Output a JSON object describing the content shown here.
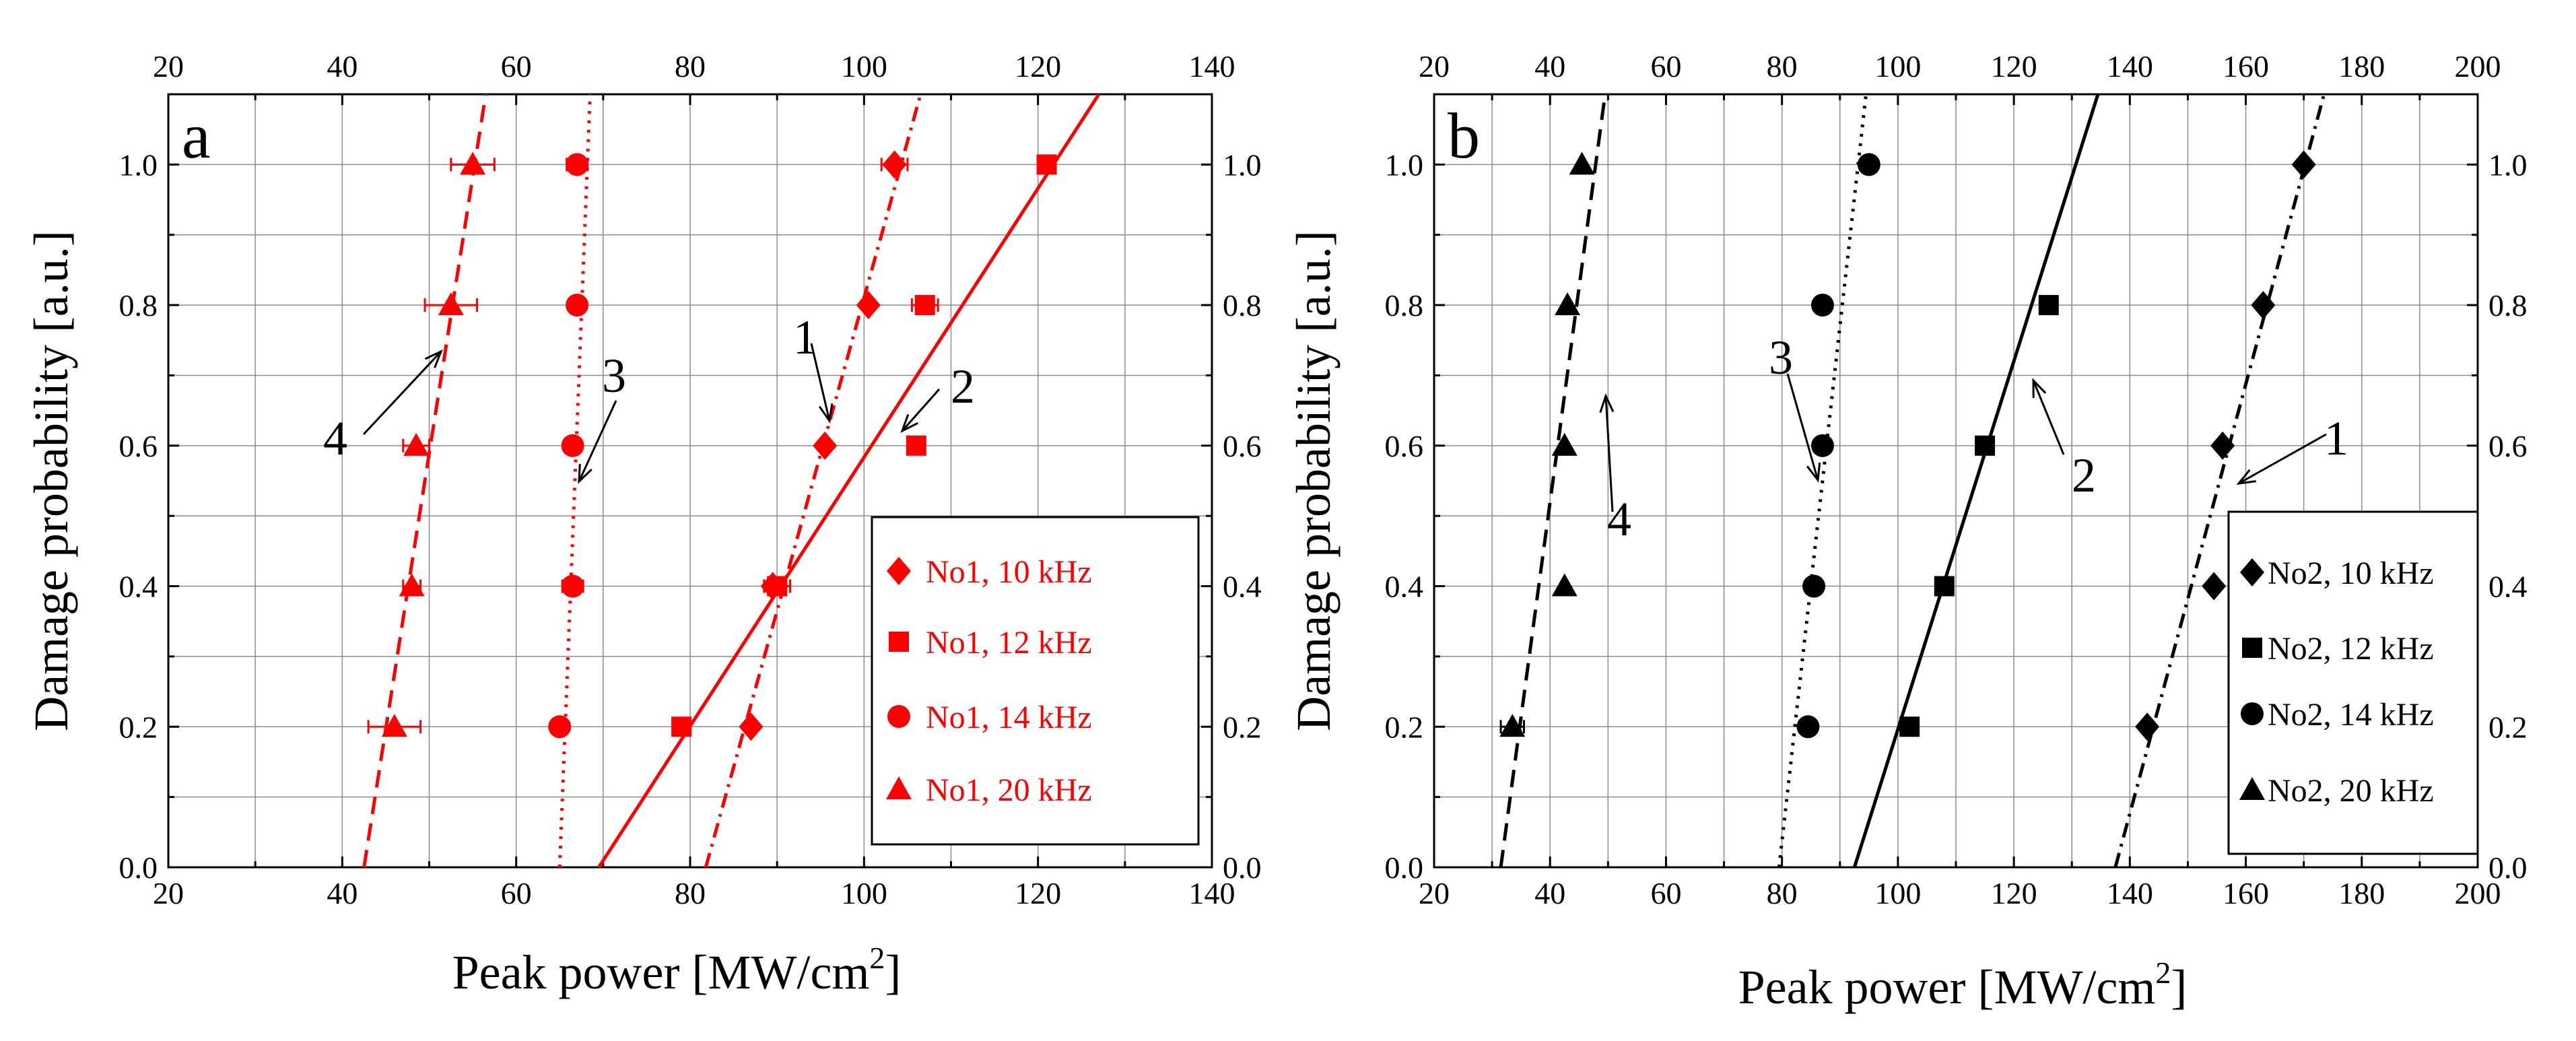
{
  "chart_data": [
    {
      "type": "scatter",
      "panel_label": "a",
      "color": "#ff0000",
      "xlabel": "Peak power [MW/cm",
      "xlabel_sup": "2",
      "xlabel_end": "]",
      "ylabel": "Damage probability [a.u.]",
      "xlim": [
        20,
        140
      ],
      "ylim": [
        0,
        1.1
      ],
      "xticks": [
        20,
        40,
        60,
        80,
        100,
        120,
        140
      ],
      "yticks": [
        0.0,
        0.2,
        0.4,
        0.6,
        0.8,
        1.0
      ],
      "ytick_labels": [
        "0.0",
        "0.2",
        "0.4",
        "0.6",
        "0.8",
        "1.0"
      ],
      "grid": true,
      "legend_position": "bottom-right",
      "series": [
        {
          "name": "No1, 10 kHz",
          "marker": "diamond",
          "line": "dashdot",
          "callout": "1",
          "points": [
            [
              87,
              0.2
            ],
            [
              89.5,
              0.4
            ],
            [
              95.5,
              0.6
            ],
            [
              100.5,
              0.8
            ],
            [
              103.5,
              1.0
            ]
          ],
          "xerr": [
            0,
            0,
            0,
            0,
            1.5
          ],
          "fit": [
            [
              81.8,
              0.0
            ],
            [
              106.5,
              1.1
            ]
          ]
        },
        {
          "name": "No1, 12 kHz",
          "marker": "square",
          "line": "solid",
          "callout": "2",
          "points": [
            [
              79,
              0.2
            ],
            [
              90,
              0.4
            ],
            [
              106,
              0.6
            ],
            [
              107,
              0.8
            ],
            [
              121,
              1.0
            ]
          ],
          "xerr": [
            0,
            1.5,
            0,
            1.5,
            0.8
          ],
          "fit": [
            [
              69.5,
              0.0
            ],
            [
              127,
              1.1
            ]
          ]
        },
        {
          "name": "No1, 14 kHz",
          "marker": "circle",
          "line": "dotted",
          "callout": "3",
          "points": [
            [
              65,
              0.2
            ],
            [
              66.5,
              0.4
            ],
            [
              66.5,
              0.6
            ],
            [
              67,
              0.8
            ],
            [
              67,
              1.0
            ]
          ],
          "xerr": [
            0,
            1.2,
            0,
            0,
            1.2
          ],
          "fit": [
            [
              65,
              0.0
            ],
            [
              68.5,
              1.1
            ]
          ]
        },
        {
          "name": "No1, 20 kHz",
          "marker": "triangle",
          "line": "dashed",
          "callout": "4",
          "points": [
            [
              46,
              0.2
            ],
            [
              48,
              0.4
            ],
            [
              48.5,
              0.6
            ],
            [
              52.5,
              0.8
            ],
            [
              55,
              1.0
            ]
          ],
          "xerr": [
            3,
            1,
            1.5,
            3,
            2.5
          ],
          "fit": [
            [
              42.5,
              0.0
            ],
            [
              56.5,
              1.1
            ]
          ]
        }
      ]
    },
    {
      "type": "scatter",
      "panel_label": "b",
      "color": "#000000",
      "xlabel": "Peak power [MW/cm",
      "xlabel_sup": "2",
      "xlabel_end": "]",
      "ylabel": "Damage probability [a.u.]",
      "xlim": [
        20,
        200
      ],
      "ylim": [
        0,
        1.1
      ],
      "xticks": [
        20,
        40,
        60,
        80,
        100,
        120,
        140,
        160,
        180,
        200
      ],
      "yticks": [
        0.0,
        0.2,
        0.4,
        0.6,
        0.8,
        1.0
      ],
      "ytick_labels": [
        "0.0",
        "0.2",
        "0.4",
        "0.6",
        "0.8",
        "1.0"
      ],
      "grid": true,
      "legend_position": "bottom-right",
      "series": [
        {
          "name": "No2, 10 kHz",
          "marker": "diamond",
          "line": "dashdot",
          "callout": "1",
          "points": [
            [
              143,
              0.2
            ],
            [
              154.5,
              0.4
            ],
            [
              156,
              0.6
            ],
            [
              163,
              0.8
            ],
            [
              170,
              1.0
            ]
          ],
          "xerr": [
            0,
            0,
            0,
            0,
            0
          ],
          "fit": [
            [
              137.5,
              0.0
            ],
            [
              173.5,
              1.1
            ]
          ]
        },
        {
          "name": "No2, 12 kHz",
          "marker": "square",
          "line": "solid",
          "callout": "2",
          "points": [
            [
              102,
              0.2
            ],
            [
              108,
              0.4
            ],
            [
              115,
              0.6
            ],
            [
              126,
              0.8
            ]
          ],
          "xerr": [
            0,
            1.5,
            0,
            0
          ],
          "fit": [
            [
              92.5,
              0.0
            ],
            [
              134.5,
              1.1
            ]
          ]
        },
        {
          "name": "No2, 14 kHz",
          "marker": "circle",
          "line": "dotted",
          "callout": "3",
          "points": [
            [
              84.5,
              0.2
            ],
            [
              85.5,
              0.4
            ],
            [
              87,
              0.6
            ],
            [
              87,
              0.8
            ],
            [
              95,
              1.0
            ]
          ],
          "xerr": [
            0,
            0,
            0,
            0,
            0
          ],
          "fit": [
            [
              79.5,
              0.0
            ],
            [
              94.5,
              1.1
            ]
          ]
        },
        {
          "name": "No2, 20 kHz",
          "marker": "triangle",
          "line": "dashed",
          "callout": "4",
          "points": [
            [
              33.5,
              0.2
            ],
            [
              42.5,
              0.4
            ],
            [
              42.5,
              0.6
            ],
            [
              43,
              0.8
            ],
            [
              45.5,
              1.0
            ]
          ],
          "xerr": [
            2,
            0,
            0,
            0,
            0
          ],
          "fit": [
            [
              31.5,
              0.0
            ],
            [
              49.5,
              1.1
            ]
          ]
        }
      ]
    }
  ]
}
